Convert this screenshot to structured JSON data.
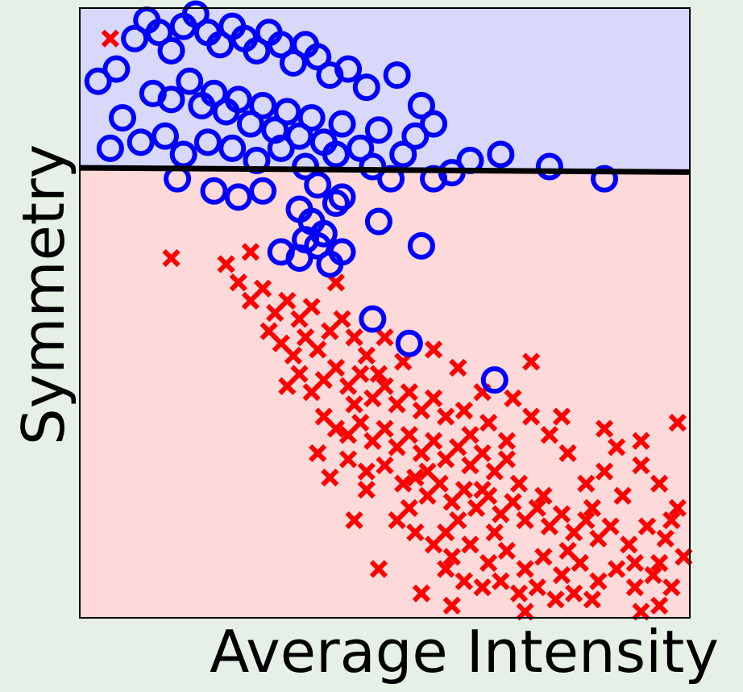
{
  "chart_data": {
    "type": "scatter",
    "xlabel": "Average Intensity",
    "ylabel": "Symmetry",
    "xlim": [
      0,
      1
    ],
    "ylim": [
      0,
      1
    ],
    "ticks": "none",
    "grid": false,
    "legend": "none",
    "colors": {
      "background": "#e6f0e6",
      "region_above": "#d8d8fb",
      "region_below": "#fdd9d9",
      "circle_class": "#0000ff",
      "cross_class": "#ff0000",
      "boundary": "#000000"
    },
    "regions": [
      {
        "name": "above-boundary",
        "fill": "#d8d8fb",
        "y_range": [
          0.735,
          1.0
        ]
      },
      {
        "name": "below-boundary",
        "fill": "#fdd9d9",
        "y_range": [
          0.0,
          0.735
        ]
      }
    ],
    "boundary_line": {
      "x": [
        0.0,
        1.0
      ],
      "y": [
        0.738,
        0.731
      ]
    },
    "series": [
      {
        "marker": "o",
        "color": "#0000ff",
        "points": [
          [
            0.03,
            0.88
          ],
          [
            0.05,
            0.77
          ],
          [
            0.07,
            0.82
          ],
          [
            0.06,
            0.9
          ],
          [
            0.09,
            0.95
          ],
          [
            0.11,
            0.98
          ],
          [
            0.13,
            0.96
          ],
          [
            0.15,
            0.93
          ],
          [
            0.17,
            0.97
          ],
          [
            0.19,
            0.99
          ],
          [
            0.21,
            0.96
          ],
          [
            0.23,
            0.94
          ],
          [
            0.25,
            0.97
          ],
          [
            0.27,
            0.95
          ],
          [
            0.29,
            0.93
          ],
          [
            0.31,
            0.96
          ],
          [
            0.33,
            0.94
          ],
          [
            0.35,
            0.91
          ],
          [
            0.37,
            0.94
          ],
          [
            0.39,
            0.92
          ],
          [
            0.41,
            0.89
          ],
          [
            0.44,
            0.9
          ],
          [
            0.47,
            0.87
          ],
          [
            0.52,
            0.89
          ],
          [
            0.56,
            0.84
          ],
          [
            0.58,
            0.81
          ],
          [
            0.12,
            0.86
          ],
          [
            0.15,
            0.85
          ],
          [
            0.18,
            0.88
          ],
          [
            0.2,
            0.84
          ],
          [
            0.22,
            0.86
          ],
          [
            0.24,
            0.83
          ],
          [
            0.26,
            0.85
          ],
          [
            0.28,
            0.81
          ],
          [
            0.3,
            0.84
          ],
          [
            0.32,
            0.8
          ],
          [
            0.34,
            0.83
          ],
          [
            0.36,
            0.79
          ],
          [
            0.38,
            0.82
          ],
          [
            0.4,
            0.78
          ],
          [
            0.43,
            0.81
          ],
          [
            0.46,
            0.77
          ],
          [
            0.49,
            0.8
          ],
          [
            0.53,
            0.76
          ],
          [
            0.55,
            0.79
          ],
          [
            0.1,
            0.78
          ],
          [
            0.14,
            0.79
          ],
          [
            0.17,
            0.76
          ],
          [
            0.21,
            0.78
          ],
          [
            0.25,
            0.77
          ],
          [
            0.29,
            0.75
          ],
          [
            0.33,
            0.77
          ],
          [
            0.37,
            0.74
          ],
          [
            0.42,
            0.76
          ],
          [
            0.48,
            0.74
          ],
          [
            0.16,
            0.72
          ],
          [
            0.22,
            0.7
          ],
          [
            0.26,
            0.69
          ],
          [
            0.3,
            0.7
          ],
          [
            0.39,
            0.71
          ],
          [
            0.43,
            0.69
          ],
          [
            0.51,
            0.72
          ],
          [
            0.58,
            0.72
          ],
          [
            0.61,
            0.73
          ],
          [
            0.64,
            0.75
          ],
          [
            0.69,
            0.76
          ],
          [
            0.77,
            0.74
          ],
          [
            0.86,
            0.72
          ],
          [
            0.36,
            0.67
          ],
          [
            0.38,
            0.65
          ],
          [
            0.4,
            0.63
          ],
          [
            0.42,
            0.68
          ],
          [
            0.37,
            0.62
          ],
          [
            0.39,
            0.61
          ],
          [
            0.33,
            0.6
          ],
          [
            0.36,
            0.59
          ],
          [
            0.41,
            0.58
          ],
          [
            0.43,
            0.6
          ],
          [
            0.49,
            0.65
          ],
          [
            0.56,
            0.61
          ],
          [
            0.48,
            0.49
          ],
          [
            0.54,
            0.45
          ],
          [
            0.68,
            0.39
          ]
        ]
      },
      {
        "marker": "x",
        "color": "#ff0000",
        "points": [
          [
            0.05,
            0.95
          ],
          [
            0.15,
            0.59
          ],
          [
            0.24,
            0.58
          ],
          [
            0.26,
            0.55
          ],
          [
            0.28,
            0.52
          ],
          [
            0.3,
            0.54
          ],
          [
            0.32,
            0.5
          ],
          [
            0.34,
            0.52
          ],
          [
            0.36,
            0.49
          ],
          [
            0.38,
            0.51
          ],
          [
            0.31,
            0.47
          ],
          [
            0.33,
            0.45
          ],
          [
            0.35,
            0.43
          ],
          [
            0.37,
            0.46
          ],
          [
            0.39,
            0.44
          ],
          [
            0.41,
            0.47
          ],
          [
            0.43,
            0.49
          ],
          [
            0.45,
            0.46
          ],
          [
            0.47,
            0.43
          ],
          [
            0.34,
            0.38
          ],
          [
            0.36,
            0.4
          ],
          [
            0.38,
            0.37
          ],
          [
            0.4,
            0.39
          ],
          [
            0.42,
            0.41
          ],
          [
            0.44,
            0.38
          ],
          [
            0.46,
            0.4
          ],
          [
            0.48,
            0.36
          ],
          [
            0.5,
            0.38
          ],
          [
            0.52,
            0.35
          ],
          [
            0.54,
            0.37
          ],
          [
            0.56,
            0.34
          ],
          [
            0.58,
            0.36
          ],
          [
            0.6,
            0.33
          ],
          [
            0.4,
            0.33
          ],
          [
            0.42,
            0.31
          ],
          [
            0.44,
            0.3
          ],
          [
            0.46,
            0.32
          ],
          [
            0.48,
            0.29
          ],
          [
            0.5,
            0.31
          ],
          [
            0.52,
            0.28
          ],
          [
            0.54,
            0.3
          ],
          [
            0.56,
            0.27
          ],
          [
            0.58,
            0.29
          ],
          [
            0.6,
            0.26
          ],
          [
            0.62,
            0.28
          ],
          [
            0.64,
            0.25
          ],
          [
            0.66,
            0.27
          ],
          [
            0.68,
            0.24
          ],
          [
            0.7,
            0.26
          ],
          [
            0.44,
            0.26
          ],
          [
            0.47,
            0.24
          ],
          [
            0.5,
            0.25
          ],
          [
            0.53,
            0.22
          ],
          [
            0.55,
            0.23
          ],
          [
            0.57,
            0.2
          ],
          [
            0.59,
            0.22
          ],
          [
            0.61,
            0.19
          ],
          [
            0.63,
            0.21
          ],
          [
            0.65,
            0.18
          ],
          [
            0.67,
            0.2
          ],
          [
            0.69,
            0.17
          ],
          [
            0.71,
            0.19
          ],
          [
            0.73,
            0.16
          ],
          [
            0.75,
            0.18
          ],
          [
            0.77,
            0.15
          ],
          [
            0.79,
            0.17
          ],
          [
            0.81,
            0.14
          ],
          [
            0.83,
            0.16
          ],
          [
            0.85,
            0.13
          ],
          [
            0.87,
            0.15
          ],
          [
            0.52,
            0.16
          ],
          [
            0.55,
            0.14
          ],
          [
            0.58,
            0.12
          ],
          [
            0.61,
            0.1
          ],
          [
            0.64,
            0.12
          ],
          [
            0.67,
            0.09
          ],
          [
            0.7,
            0.11
          ],
          [
            0.73,
            0.08
          ],
          [
            0.76,
            0.1
          ],
          [
            0.79,
            0.07
          ],
          [
            0.82,
            0.09
          ],
          [
            0.85,
            0.06
          ],
          [
            0.88,
            0.08
          ],
          [
            0.91,
            0.05
          ],
          [
            0.94,
            0.07
          ],
          [
            0.97,
            0.05
          ],
          [
            0.6,
            0.08
          ],
          [
            0.63,
            0.06
          ],
          [
            0.66,
            0.05
          ],
          [
            0.69,
            0.06
          ],
          [
            0.72,
            0.04
          ],
          [
            0.75,
            0.05
          ],
          [
            0.78,
            0.03
          ],
          [
            0.81,
            0.04
          ],
          [
            0.84,
            0.03
          ],
          [
            0.9,
            0.12
          ],
          [
            0.93,
            0.15
          ],
          [
            0.96,
            0.13
          ],
          [
            0.99,
            0.1
          ],
          [
            0.98,
            0.18
          ],
          [
            0.95,
            0.22
          ],
          [
            0.92,
            0.25
          ],
          [
            0.89,
            0.2
          ],
          [
            0.86,
            0.24
          ],
          [
            0.83,
            0.22
          ],
          [
            0.8,
            0.27
          ],
          [
            0.77,
            0.3
          ],
          [
            0.74,
            0.33
          ],
          [
            0.71,
            0.36
          ],
          [
            0.74,
            0.42
          ],
          [
            0.79,
            0.33
          ],
          [
            0.86,
            0.31
          ],
          [
            0.92,
            0.29
          ],
          [
            0.98,
            0.32
          ],
          [
            0.58,
            0.44
          ],
          [
            0.62,
            0.41
          ],
          [
            0.66,
            0.37
          ],
          [
            0.47,
            0.21
          ],
          [
            0.45,
            0.16
          ],
          [
            0.49,
            0.08
          ],
          [
            0.56,
            0.04
          ],
          [
            0.61,
            0.02
          ],
          [
            0.73,
            0.01
          ],
          [
            0.92,
            0.01
          ],
          [
            0.95,
            0.02
          ],
          [
            0.39,
            0.27
          ],
          [
            0.41,
            0.23
          ],
          [
            0.28,
            0.6
          ],
          [
            0.42,
            0.55
          ],
          [
            0.5,
            0.46
          ],
          [
            0.64,
            0.3
          ],
          [
            0.68,
            0.14
          ],
          [
            0.72,
            0.22
          ],
          [
            0.76,
            0.2
          ],
          [
            0.8,
            0.11
          ],
          [
            0.84,
            0.18
          ],
          [
            0.88,
            0.28
          ],
          [
            0.91,
            0.09
          ],
          [
            0.95,
            0.09
          ],
          [
            0.97,
            0.16
          ],
          [
            0.62,
            0.16
          ],
          [
            0.66,
            0.21
          ],
          [
            0.7,
            0.29
          ],
          [
            0.54,
            0.18
          ],
          [
            0.57,
            0.24
          ],
          [
            0.6,
            0.14
          ],
          [
            0.63,
            0.34
          ],
          [
            0.67,
            0.32
          ],
          [
            0.45,
            0.35
          ],
          [
            0.49,
            0.4
          ],
          [
            0.53,
            0.42
          ]
        ]
      }
    ]
  }
}
